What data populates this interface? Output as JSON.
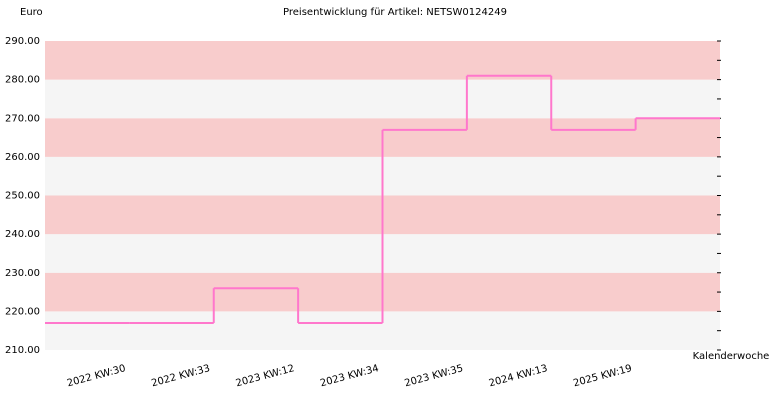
{
  "chart_data": {
    "type": "step",
    "title": "Preisentwicklung für Artikel: NETSW0124249",
    "y_label": "Euro",
    "x_label": "Kalenderwoche",
    "categories": [
      null,
      "2022 KW:30",
      "2022 KW:33",
      "2023 KW:12",
      "2023 KW:34",
      "2023 KW:35",
      "2024 KW:13",
      "2025 KW:19"
    ],
    "values": [
      217,
      217,
      226,
      217,
      267,
      281,
      267,
      270
    ],
    "color": "#ff77cc",
    "band_colors": [
      "#f5f5f5",
      "#f8cccc"
    ],
    "ylim": [
      210,
      290
    ],
    "yticks": [
      {
        "value": 210,
        "label": "210.00"
      },
      {
        "value": 220,
        "label": "220.00"
      },
      {
        "value": 230,
        "label": "230.00"
      },
      {
        "value": 240,
        "label": "240.00"
      },
      {
        "value": 250,
        "label": "250.00"
      },
      {
        "value": 260,
        "label": "260.00"
      },
      {
        "value": 270,
        "label": "270.00"
      },
      {
        "value": 280,
        "label": "280.00"
      },
      {
        "value": 290,
        "label": "290.00"
      }
    ]
  }
}
